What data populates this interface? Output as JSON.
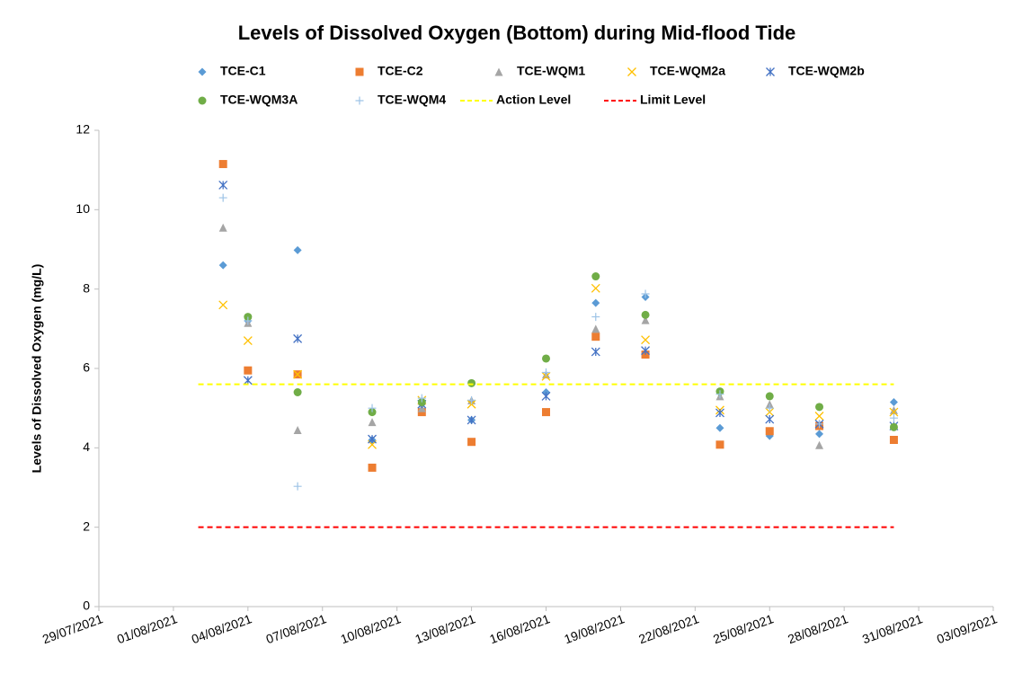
{
  "chart_data": {
    "type": "scatter",
    "title": "Levels of Dissolved Oxygen (Bottom) during Mid-flood Tide",
    "y_label": "Levels of Dissolved Oxygen (mg/L)",
    "xlim": [
      "29/07/2021",
      "03/09/2021"
    ],
    "xticks": [
      "29/07/2021",
      "01/08/2021",
      "04/08/2021",
      "07/08/2021",
      "10/08/2021",
      "13/08/2021",
      "16/08/2021",
      "19/08/2021",
      "22/08/2021",
      "25/08/2021",
      "28/08/2021",
      "31/08/2021",
      "03/09/2021"
    ],
    "ylim": [
      0,
      12
    ],
    "yticks": [
      0,
      2,
      4,
      6,
      8,
      10,
      12
    ],
    "x": [
      "03/08/2021",
      "04/08/2021",
      "06/08/2021",
      "09/08/2021",
      "11/08/2021",
      "13/08/2021",
      "16/08/2021",
      "18/08/2021",
      "20/08/2021",
      "23/08/2021",
      "25/08/2021",
      "27/08/2021",
      "30/08/2021"
    ],
    "series": [
      {
        "name": "TCE-C1",
        "color": "#5b9bd5",
        "marker": "diamond",
        "values": [
          8.6,
          7.2,
          8.98,
          4.2,
          5.1,
          4.7,
          5.4,
          7.65,
          7.8,
          4.5,
          4.3,
          4.35,
          5.15
        ]
      },
      {
        "name": "TCE-C2",
        "color": "#ed7d31",
        "marker": "square",
        "values": [
          11.15,
          5.95,
          5.85,
          3.5,
          4.9,
          4.15,
          4.9,
          6.8,
          6.35,
          4.08,
          4.42,
          4.55,
          4.2
        ]
      },
      {
        "name": "TCE-WQM1",
        "color": "#a5a5a5",
        "marker": "triangle",
        "values": [
          9.55,
          7.15,
          4.45,
          4.65,
          5.0,
          5.2,
          5.85,
          7.0,
          7.22,
          5.3,
          5.1,
          4.07,
          4.95
        ]
      },
      {
        "name": "TCE-WQM2a",
        "color": "#ffc000",
        "marker": "x",
        "values": [
          7.6,
          6.7,
          5.85,
          4.08,
          5.2,
          5.1,
          5.8,
          8.02,
          6.72,
          4.95,
          4.9,
          4.8,
          4.9
        ]
      },
      {
        "name": "TCE-WQM2b",
        "color": "#4472c4",
        "marker": "asterisk",
        "values": [
          10.62,
          5.7,
          6.75,
          4.22,
          5.1,
          4.7,
          5.3,
          6.42,
          6.45,
          4.88,
          4.72,
          4.6,
          4.55
        ]
      },
      {
        "name": "TCE-WQM3A",
        "color": "#70ad47",
        "marker": "circle",
        "values": [
          null,
          7.3,
          5.4,
          4.9,
          5.15,
          5.63,
          6.25,
          8.32,
          7.35,
          5.42,
          5.3,
          5.03,
          4.52
        ]
      },
      {
        "name": "TCE-WQM4",
        "color": "#9dc3e6",
        "marker": "plus",
        "values": [
          10.3,
          7.2,
          3.03,
          5.0,
          5.25,
          5.2,
          5.9,
          7.3,
          7.88,
          5.35,
          5.0,
          4.6,
          4.75
        ]
      },
      {
        "name": "Action Level",
        "color": "#ffff00",
        "marker": "dashed-line",
        "x": [
          "02/08/2021",
          "30/08/2021"
        ],
        "values": [
          5.6,
          5.6
        ]
      },
      {
        "name": "Limit Level",
        "color": "#ff0000",
        "marker": "dashed-line",
        "x": [
          "02/08/2021",
          "30/08/2021"
        ],
        "values": [
          2,
          2
        ]
      }
    ]
  }
}
